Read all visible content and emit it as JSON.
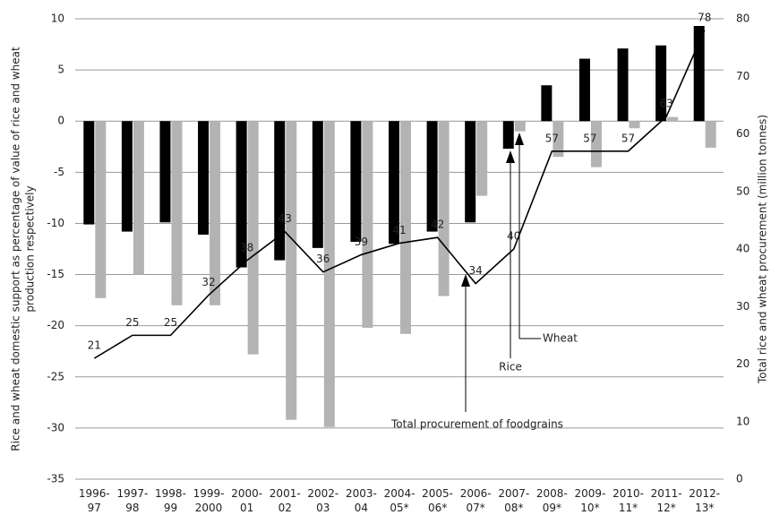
{
  "chart_data": {
    "type": "bar_line",
    "ylabel": [
      "Rice and wheat domestic support as percentage of value of rice and wheat",
      "production respectively"
    ],
    "y2label": "Total rice and wheat procurement (million tonnes)",
    "categories": [
      "1996-\n97",
      "1997-\n98",
      "1998-\n99",
      "1999-\n2000",
      "2000-\n01",
      "2001-\n02",
      "2002-\n03",
      "2003-\n04",
      "2004-\n05*",
      "2005-\n06*",
      "2006-\n07*",
      "2007-\n08*",
      "2008-\n09*",
      "2009-\n10*",
      "2010-\n11*",
      "2011-\n12*",
      "2012-\n13*"
    ],
    "series": [
      {
        "name": "Rice",
        "color": "#000000",
        "type": "bar",
        "values": [
          -10.1,
          -10.8,
          -9.9,
          -11.1,
          -14.3,
          -13.6,
          -12.4,
          -11.8,
          -12.0,
          -10.8,
          -9.9,
          -2.7,
          3.5,
          6.1,
          7.1,
          7.4,
          9.3
        ]
      },
      {
        "name": "Wheat",
        "color": "#b3b3b3",
        "type": "bar",
        "values": [
          -17.3,
          -15.0,
          -18.0,
          -18.0,
          -22.8,
          -29.2,
          -29.9,
          -20.2,
          -20.8,
          -17.1,
          -7.3,
          -1.0,
          -3.5,
          -4.5,
          -0.7,
          0.4,
          -2.6
        ]
      },
      {
        "name": "Total procurement of foodgrains",
        "color": "#000000",
        "type": "line",
        "axis": "y2",
        "values": [
          21,
          25,
          25,
          32,
          38,
          43,
          36,
          39,
          41,
          42,
          34,
          40,
          57,
          57,
          57,
          63,
          78
        ]
      }
    ],
    "ylim": [
      -35,
      10
    ],
    "yticks": [
      10,
      5,
      0,
      -5,
      -10,
      -15,
      -20,
      -25,
      -30,
      -35
    ],
    "y2lim": [
      0,
      80
    ],
    "y2ticks": [
      0,
      10,
      20,
      30,
      40,
      50,
      60,
      70,
      80
    ],
    "grid": true
  }
}
